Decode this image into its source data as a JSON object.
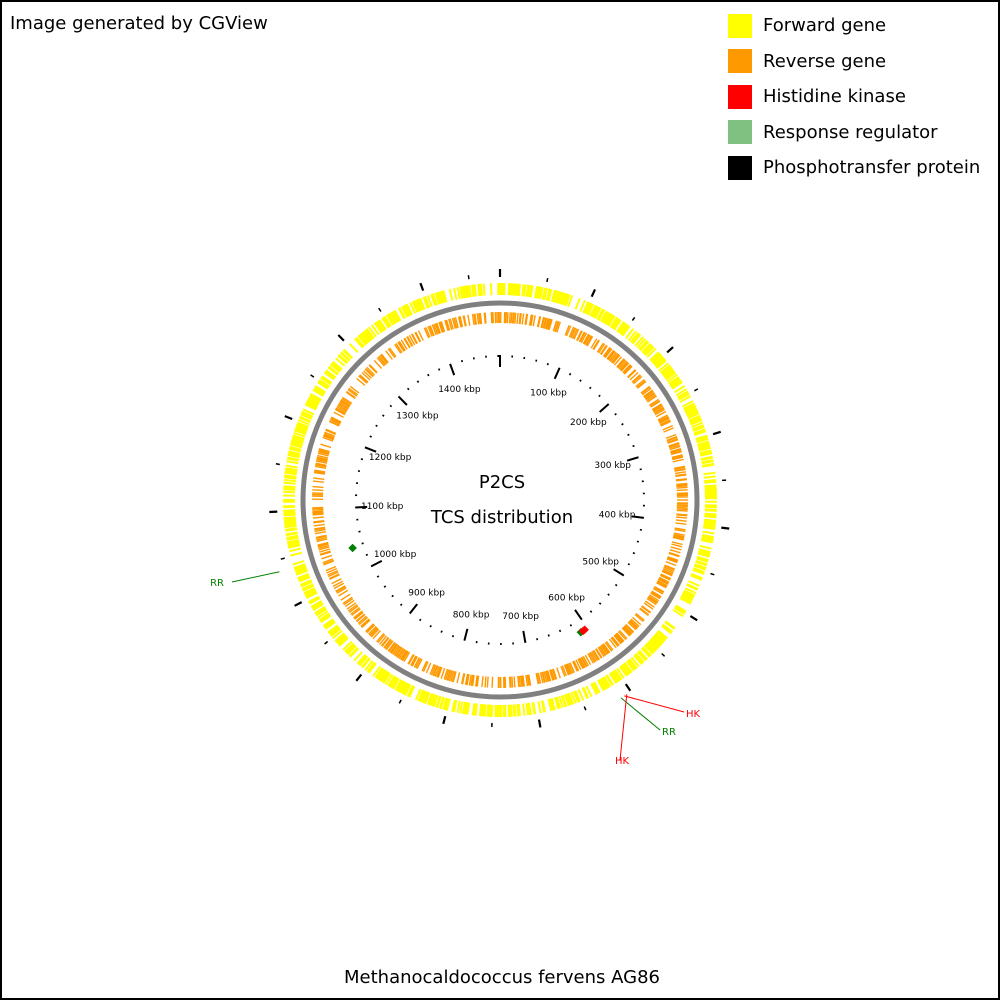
{
  "credit": "Image generated by CGView",
  "legend": [
    {
      "label": "Forward gene",
      "color": "#ffff00"
    },
    {
      "label": "Reverse gene",
      "color": "#ff9900"
    },
    {
      "label": "Histidine kinase",
      "color": "#ff0000"
    },
    {
      "label": "Response regulator",
      "color": "#80c080"
    },
    {
      "label": "Phosphotransfer protein",
      "color": "#000000"
    }
  ],
  "center": {
    "title": "P2CS",
    "subtitle": "TCS distribution"
  },
  "organism": "Methanocaldococcus fervens AG86",
  "genome": {
    "length_kbp": 1483,
    "tick_labels": [
      "100 kbp",
      "200 kbp",
      "300 kbp",
      "400 kbp",
      "500 kbp",
      "600 kbp",
      "700 kbp",
      "800 kbp",
      "900 kbp",
      "1000 kbp",
      "1100 kbp",
      "1200 kbp",
      "1300 kbp",
      "1400 kbp"
    ]
  },
  "features": [
    {
      "label": "RR",
      "type": "Response regulator",
      "position_kbp": 1038,
      "color": "#008000"
    },
    {
      "label": "RR",
      "type": "Response regulator",
      "position_kbp": 612,
      "color": "#008000"
    },
    {
      "label": "HK",
      "type": "Histidine kinase",
      "position_kbp": 605,
      "color": "#ff0000"
    },
    {
      "label": "HK",
      "type": "Histidine kinase",
      "position_kbp": 608,
      "color": "#ff0000"
    }
  ],
  "colors": {
    "backbone": "#808080",
    "forward": "#ffff00",
    "reverse": "#ff9900",
    "ticks": "#000000"
  }
}
